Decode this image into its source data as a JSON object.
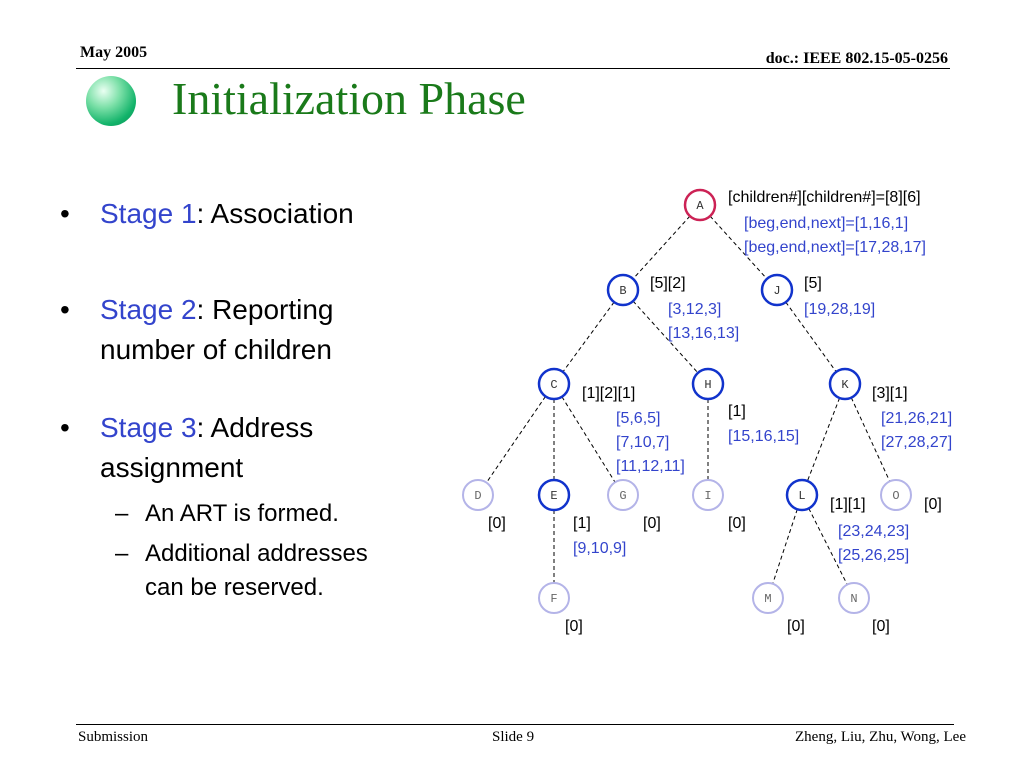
{
  "header": {
    "date": "May 2005",
    "doc": "doc.: IEEE 802.15-05-0256"
  },
  "title": "Initialization Phase",
  "bullets": [
    {
      "stage": "Stage 1",
      "rest": ": Association"
    },
    {
      "stage": "Stage 2",
      "rest": ": Reporting",
      "line2": "number of children"
    },
    {
      "stage": "Stage 3",
      "rest": ": Address",
      "line2": "assignment"
    }
  ],
  "subbullets": [
    {
      "line1": "An ART is formed."
    },
    {
      "line1": "Additional addresses",
      "line2": "can be reserved."
    }
  ],
  "diagram": {
    "nodes": [
      {
        "id": "A",
        "ring": "#cc2255",
        "fill": "#ffffff",
        "text": "#333333"
      },
      {
        "id": "B",
        "ring": "#1133cc",
        "fill": "#ffffff",
        "text": "#333333"
      },
      {
        "id": "J",
        "ring": "#1133cc",
        "fill": "#ffffff",
        "text": "#333333"
      },
      {
        "id": "C",
        "ring": "#1133cc",
        "fill": "#ffffff",
        "text": "#333333"
      },
      {
        "id": "H",
        "ring": "#1133cc",
        "fill": "#ffffff",
        "text": "#333333"
      },
      {
        "id": "K",
        "ring": "#1133cc",
        "fill": "#ffffff",
        "text": "#333333"
      },
      {
        "id": "D",
        "ring": "#b4b4e8",
        "fill": "#ffffff",
        "text": "#666666"
      },
      {
        "id": "E",
        "ring": "#1133cc",
        "fill": "#ffffff",
        "text": "#333333"
      },
      {
        "id": "G",
        "ring": "#b4b4e8",
        "fill": "#ffffff",
        "text": "#666666"
      },
      {
        "id": "I",
        "ring": "#b4b4e8",
        "fill": "#ffffff",
        "text": "#666666"
      },
      {
        "id": "L",
        "ring": "#1133cc",
        "fill": "#ffffff",
        "text": "#333333"
      },
      {
        "id": "O",
        "ring": "#b4b4e8",
        "fill": "#ffffff",
        "text": "#666666"
      },
      {
        "id": "F",
        "ring": "#b4b4e8",
        "fill": "#ffffff",
        "text": "#666666"
      },
      {
        "id": "M",
        "ring": "#b4b4e8",
        "fill": "#ffffff",
        "text": "#666666"
      },
      {
        "id": "N",
        "ring": "#b4b4e8",
        "fill": "#ffffff",
        "text": "#666666"
      }
    ],
    "edges": [
      [
        "A",
        "B"
      ],
      [
        "A",
        "J"
      ],
      [
        "B",
        "C"
      ],
      [
        "B",
        "H"
      ],
      [
        "J",
        "K"
      ],
      [
        "C",
        "D"
      ],
      [
        "C",
        "E"
      ],
      [
        "C",
        "G"
      ],
      [
        "H",
        "I"
      ],
      [
        "K",
        "L"
      ],
      [
        "K",
        "O"
      ],
      [
        "E",
        "F"
      ],
      [
        "L",
        "M"
      ],
      [
        "L",
        "N"
      ]
    ],
    "labels": {
      "A_children": "[children#][children#]=[8][6]",
      "A_range1": "[beg,end,next]=[1,16,1]",
      "A_range2": "[beg,end,next]=[17,28,17]",
      "B_children": "[5][2]",
      "B_range1": "[3,12,3]",
      "B_range2": "[13,16,13]",
      "J_children": "[5]",
      "J_range1": "[19,28,19]",
      "C_children": "[1][2][1]",
      "C_range1": "[5,6,5]",
      "C_range2": "[7,10,7]",
      "C_range3": "[11,12,11]",
      "H_children": "[1]",
      "H_range1": "[15,16,15]",
      "K_children": "[3][1]",
      "K_range1": "[21,26,21]",
      "K_range2": "[27,28,27]",
      "D_children": "[0]",
      "E_children": "[1]",
      "E_range1": "[9,10,9]",
      "G_children": "[0]",
      "I_children": "[0]",
      "L_children": "[1][1]",
      "L_range1": "[23,24,23]",
      "L_range2": "[25,26,25]",
      "O_children": "[0]",
      "F_children": "[0]",
      "M_children": "[0]",
      "N_children": "[0]"
    },
    "colors": {
      "black_text": "#000000",
      "blue_text": "#3344cc"
    }
  },
  "footer": {
    "left": "Submission",
    "center": "Slide 9",
    "right": "Zheng, Liu, Zhu, Wong, Lee"
  }
}
